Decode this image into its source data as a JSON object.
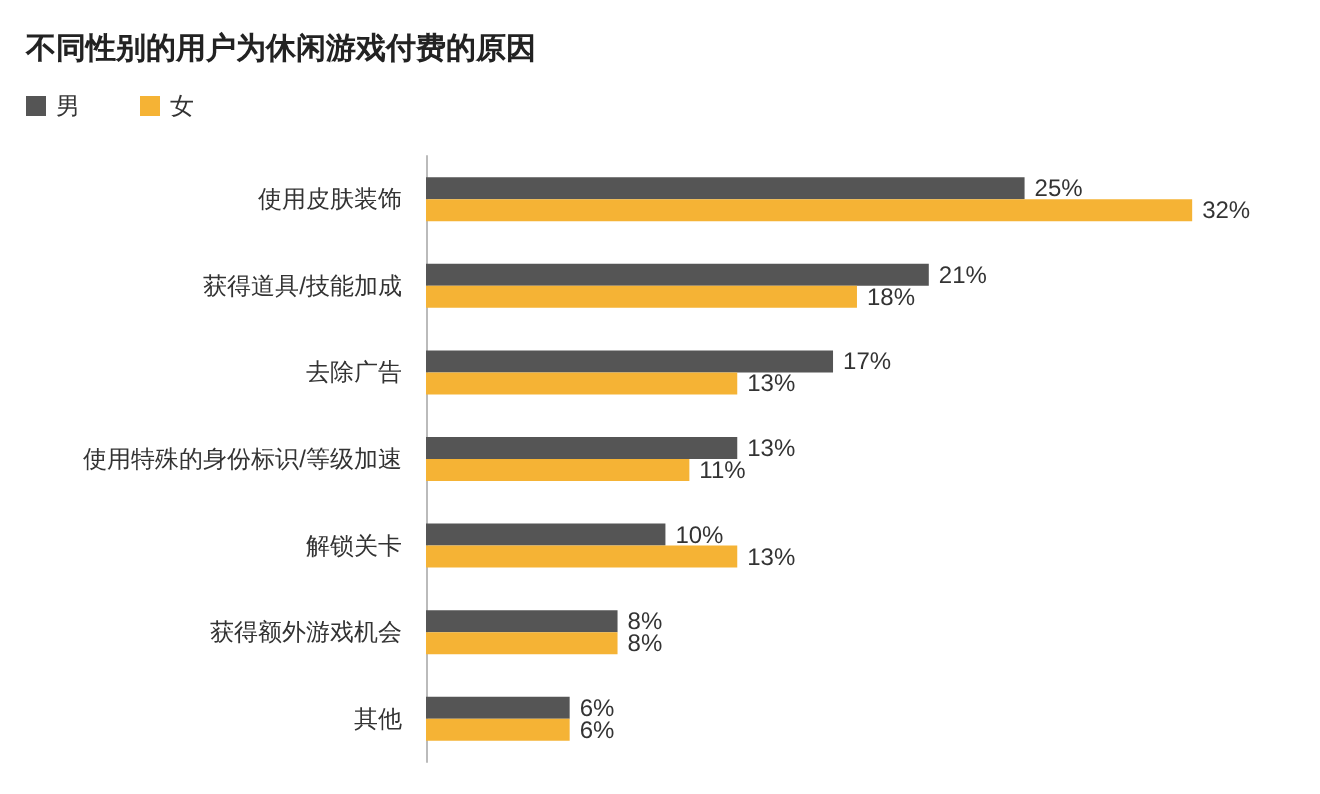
{
  "chart_data": {
    "type": "bar",
    "orientation": "horizontal",
    "title": "不同性别的用户为休闲游戏付费的原因",
    "categories": [
      "使用皮肤装饰",
      "获得道具/技能加成",
      "去除广告",
      "使用特殊的身份标识/等级加速",
      "解锁关卡",
      "获得额外游戏机会",
      "其他"
    ],
    "series": [
      {
        "name": "男",
        "color": "#555555",
        "values": [
          25,
          21,
          17,
          13,
          10,
          8,
          6
        ],
        "value_labels": [
          "25%",
          "21%",
          "17%",
          "13%",
          "10%",
          "8%",
          "6%"
        ]
      },
      {
        "name": "女",
        "color": "#f5b335",
        "values": [
          32,
          18,
          13,
          11,
          13,
          8,
          6
        ],
        "value_labels": [
          "32%",
          "18%",
          "13%",
          "11%",
          "13%",
          "8%",
          "6%"
        ]
      }
    ],
    "legend": "top left",
    "tick_labels": "y"
  }
}
